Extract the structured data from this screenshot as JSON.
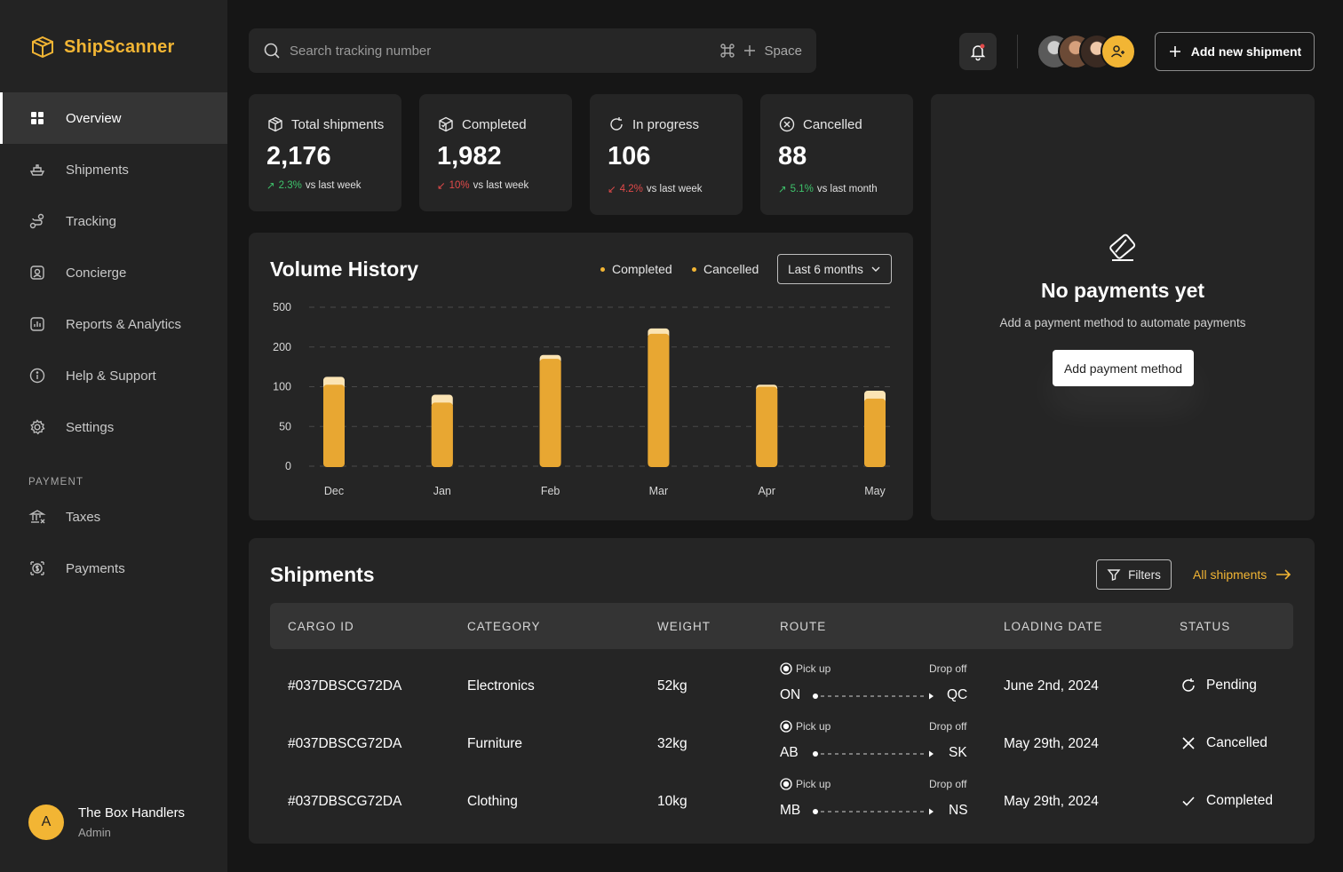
{
  "app": {
    "name": "ShipScanner"
  },
  "sidebar": {
    "items": [
      {
        "label": "Overview",
        "icon": "grid-icon",
        "active": true
      },
      {
        "label": "Shipments",
        "icon": "ship-icon"
      },
      {
        "label": "Tracking",
        "icon": "route-icon"
      },
      {
        "label": "Concierge",
        "icon": "concierge-icon"
      },
      {
        "label": "Reports & Analytics",
        "icon": "chart-icon"
      },
      {
        "label": "Help & Support",
        "icon": "info-icon"
      },
      {
        "label": "Settings",
        "icon": "gear-icon"
      }
    ],
    "section_label": "PAYMENT",
    "payment_items": [
      {
        "label": "Taxes",
        "icon": "bank-icon"
      },
      {
        "label": "Payments",
        "icon": "dollar-icon"
      }
    ],
    "user": {
      "initial": "A",
      "name": "The Box Handlers",
      "role": "Admin"
    }
  },
  "header": {
    "search_placeholder": "Search tracking number",
    "shortcut_key": "Space",
    "add_shipment_label": "Add new shipment"
  },
  "stats": [
    {
      "title": "Total shipments",
      "value": "2,176",
      "delta": "2.3%",
      "direction": "up",
      "compare": "vs last week"
    },
    {
      "title": "Completed",
      "value": "1,982",
      "delta": "10%",
      "direction": "down",
      "compare": "vs last week"
    },
    {
      "title": "In progress",
      "value": "106",
      "delta": "4.2%",
      "direction": "down",
      "compare": "vs last week"
    },
    {
      "title": "Cancelled",
      "value": "88",
      "delta": "5.1%",
      "direction": "up",
      "compare": "vs last month"
    }
  ],
  "volume": {
    "title": "Volume History",
    "legend": [
      "Completed",
      "Cancelled"
    ],
    "range_label": "Last 6 months"
  },
  "chart_data": {
    "type": "bar",
    "stacked": true,
    "title": "Volume History",
    "categories": [
      "Dec",
      "Jan",
      "Feb",
      "Mar",
      "Apr",
      "May"
    ],
    "y_ticks": [
      0,
      50,
      100,
      200,
      500
    ],
    "ylim": [
      0,
      500
    ],
    "grid": true,
    "legend_position": "top-right",
    "series": [
      {
        "name": "Completed",
        "color": "#e8a732",
        "values": [
          105,
          80,
          170,
          300,
          100,
          85
        ]
      },
      {
        "name": "Cancelled",
        "color": "#fbe4b4",
        "values": [
          20,
          10,
          10,
          40,
          5,
          10
        ]
      }
    ]
  },
  "payments": {
    "title": "No payments yet",
    "subtitle": "Add a payment method to automate payments",
    "button_label": "Add payment method"
  },
  "shipments": {
    "title": "Shipments",
    "filters_label": "Filters",
    "all_label": "All shipments",
    "columns": [
      "CARGO ID",
      "CATEGORY",
      "WEIGHT",
      "ROUTE",
      "LOADING DATE",
      "STATUS"
    ],
    "route_labels": {
      "pickup": "Pick up",
      "dropoff": "Drop off"
    },
    "rows": [
      {
        "cargo_id": "#037DBSCG72DA",
        "category": "Electronics",
        "weight": "52kg",
        "from": "ON",
        "to": "QC",
        "date": "June 2nd, 2024",
        "status": "Pending",
        "status_icon": "refresh-icon"
      },
      {
        "cargo_id": "#037DBSCG72DA",
        "category": "Furniture",
        "weight": "32kg",
        "from": "AB",
        "to": "SK",
        "date": "May 29th, 2024",
        "status": "Cancelled",
        "status_icon": "x-icon"
      },
      {
        "cargo_id": "#037DBSCG72DA",
        "category": "Clothing",
        "weight": "10kg",
        "from": "MB",
        "to": "NS",
        "date": "May 29th, 2024",
        "status": "Completed",
        "status_icon": "check-icon"
      }
    ]
  },
  "colors": {
    "accent": "#f2b534",
    "bg": "#161616",
    "panel": "#252525",
    "up": "#3ec26b",
    "down": "#e24a4a"
  }
}
